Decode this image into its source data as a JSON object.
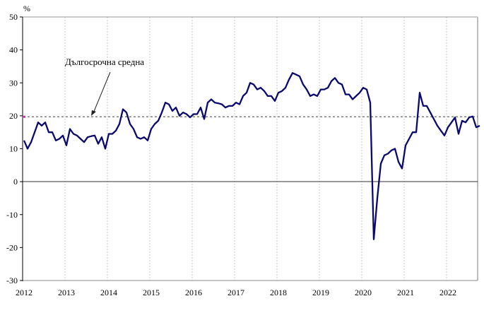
{
  "chart_data": {
    "type": "line",
    "title": "",
    "ylabel": "%",
    "xlabel": "",
    "ylim": [
      -30,
      50
    ],
    "yticks": [
      50,
      40,
      30,
      20,
      10,
      0,
      -10,
      -20,
      -30
    ],
    "xticks": [
      "2012",
      "2013",
      "2014",
      "2015",
      "2016",
      "2017",
      "2018",
      "2019",
      "2020",
      "2021",
      "2022"
    ],
    "grid": "vertical dashed at year marks",
    "legend": "none",
    "annotation": {
      "text": "Дългосрочна средна",
      "value": 19.7,
      "points_to": "long-term average dashed line"
    },
    "reference_line": {
      "name": "Дългосрочна средна",
      "value": 19.7,
      "style": "dashed",
      "color": "#666666"
    },
    "series": [
      {
        "name": "indicator",
        "color": "#0a0a6e",
        "start": "2012-01",
        "frequency": "monthly",
        "values": [
          12.5,
          10.0,
          12.0,
          15.0,
          18.0,
          17.0,
          18.0,
          15.0,
          15.0,
          12.5,
          13.0,
          14.0,
          11.0,
          16.0,
          14.5,
          14.0,
          13.0,
          12.0,
          13.5,
          13.8,
          14.0,
          11.5,
          13.5,
          10.0,
          14.5,
          14.5,
          15.5,
          17.5,
          22.0,
          21.0,
          17.5,
          16.0,
          13.5,
          13.0,
          13.5,
          12.5,
          16.0,
          17.5,
          18.5,
          21.0,
          24.0,
          23.5,
          21.5,
          22.5,
          20.0,
          21.0,
          20.5,
          19.5,
          20.5,
          20.5,
          22.5,
          19.0,
          24.0,
          25.0,
          24.0,
          23.8,
          23.5,
          22.5,
          23.0,
          23.0,
          24.0,
          23.5,
          26.0,
          27.0,
          30.0,
          29.5,
          28.0,
          28.5,
          27.5,
          26.0,
          26.0,
          24.5,
          27.0,
          27.5,
          28.5,
          31.0,
          33.0,
          32.5,
          32.0,
          29.5,
          28.0,
          26.0,
          26.5,
          26.0,
          28.0,
          28.0,
          28.5,
          30.5,
          31.5,
          30.0,
          29.5,
          26.5,
          26.5,
          25.0,
          26.0,
          27.0,
          28.5,
          28.0,
          24.0,
          -17.5,
          -5.0,
          5.5,
          8.0,
          8.5,
          9.5,
          10.0,
          6.0,
          4.0,
          11.0,
          13.0,
          15.0,
          15.0,
          27.0,
          23.0,
          23.0,
          21.0,
          19.0,
          17.0,
          15.5,
          14.0,
          16.5,
          18.0,
          19.5,
          14.5,
          18.5,
          18.0,
          19.5,
          19.8,
          16.5,
          17.0
        ]
      }
    ]
  }
}
